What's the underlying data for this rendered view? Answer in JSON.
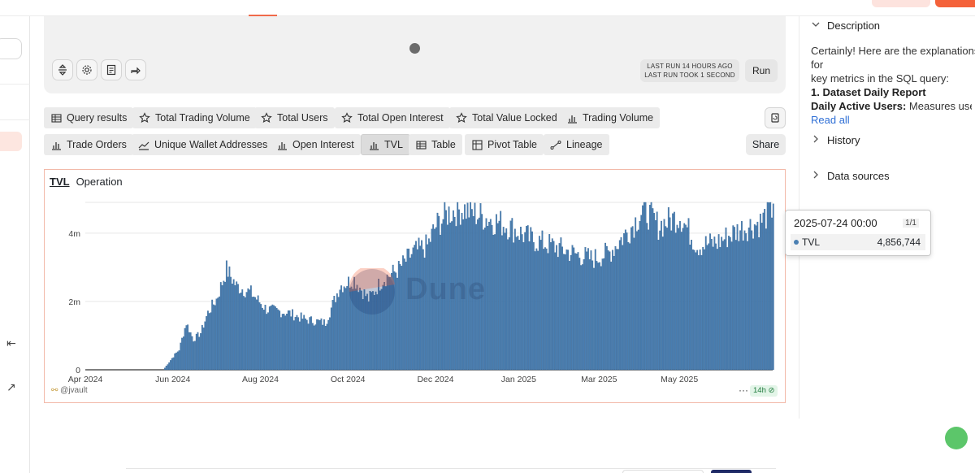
{
  "editor": {
    "last_run_line1": "LAST RUN 14 HOURS AGO",
    "last_run_line2": "LAST RUN TOOK 1 SECOND",
    "run_label": "Run"
  },
  "tabs_row1": [
    {
      "label": "Query results",
      "icon": "table-icon"
    },
    {
      "label": "Total Trading Volume",
      "icon": "star-icon"
    },
    {
      "label": "Total Users",
      "icon": "star-icon"
    },
    {
      "label": "Total Open Interest",
      "icon": "star-icon"
    },
    {
      "label": "Total Value Locked",
      "icon": "star-icon"
    },
    {
      "label": "Trading Volume",
      "icon": "bar-chart-icon"
    }
  ],
  "tabs_row2": [
    {
      "label": "Trade Orders",
      "icon": "bar-chart-icon"
    },
    {
      "label": "Unique Wallet Addresses",
      "icon": "line-chart-icon"
    },
    {
      "label": "Open Interest",
      "icon": "bar-chart-icon"
    },
    {
      "label": "TVL",
      "icon": "bar-chart-icon",
      "active": true
    },
    {
      "label": "Table",
      "icon": "table-icon"
    },
    {
      "label": "Pivot Table",
      "icon": "pivot-icon"
    },
    {
      "label": "Lineage",
      "icon": "lineage-icon"
    }
  ],
  "share_label": "Share",
  "panel": {
    "title": "TVL",
    "subtitle": "Operation",
    "author": "@jvault",
    "refresh_badge": "14h",
    "more": "···",
    "watermark": "Dune"
  },
  "tooltip": {
    "date": "2025-07-24 00:00",
    "page": "1/1",
    "series": "TVL",
    "value": "4,856,744"
  },
  "right_pane": {
    "description_label": "Description",
    "description_text_1": "Certainly! Here are the explanations for",
    "description_text_2": "key metrics in the SQL query:",
    "description_item_1": "1. Dataset Daily Report",
    "description_item_2_bold": "Daily Active Users:",
    "description_item_2_rest": " Measures user…",
    "read_all": "Read all",
    "history_label": "History",
    "data_sources_label": "Data sources"
  },
  "colors": {
    "bar": "#4a7fb2",
    "bar_edge": "#2f5f8f",
    "accent": "#f4623a",
    "panel_border": "#f2b9a9"
  },
  "chart_data": {
    "type": "bar",
    "series": [
      {
        "name": "TVL"
      }
    ],
    "x_start": "2024-04-01",
    "x_end": "2025-07-24",
    "xticks": [
      "Apr 2024",
      "Jun 2024",
      "Aug 2024",
      "Oct 2024",
      "Dec 2024",
      "Jan 2025",
      "Mar 2025",
      "May 2025"
    ],
    "yticks": [
      "0",
      "2m",
      "4m"
    ],
    "ylim": [
      0,
      4900000
    ],
    "points": [
      [
        "2024-04-01",
        0
      ],
      [
        "2024-05-25",
        0
      ],
      [
        "2024-06-01",
        400000
      ],
      [
        "2024-06-05",
        600000
      ],
      [
        "2024-06-10",
        1400000
      ],
      [
        "2024-06-15",
        900000
      ],
      [
        "2024-06-20",
        1100000
      ],
      [
        "2024-06-25",
        1700000
      ],
      [
        "2024-07-01",
        2100000
      ],
      [
        "2024-07-05",
        2600000
      ],
      [
        "2024-07-08",
        3000000
      ],
      [
        "2024-07-15",
        2500000
      ],
      [
        "2024-07-25",
        2300000
      ],
      [
        "2024-08-05",
        1800000
      ],
      [
        "2024-08-20",
        1700000
      ],
      [
        "2024-09-01",
        1500000
      ],
      [
        "2024-09-15",
        1400000
      ],
      [
        "2024-09-25",
        2500000
      ],
      [
        "2024-10-05",
        2700000
      ],
      [
        "2024-10-15",
        2100000
      ],
      [
        "2024-10-25",
        2700000
      ],
      [
        "2024-11-05",
        3000000
      ],
      [
        "2024-11-15",
        3500000
      ],
      [
        "2024-11-25",
        3700000
      ],
      [
        "2024-12-01",
        4300000
      ],
      [
        "2024-12-10",
        4700000
      ],
      [
        "2024-12-20",
        4800000
      ],
      [
        "2025-01-01",
        4600000
      ],
      [
        "2025-01-20",
        4300000
      ],
      [
        "2025-02-05",
        3900000
      ],
      [
        "2025-02-20",
        3700000
      ],
      [
        "2025-03-05",
        3500000
      ],
      [
        "2025-03-20",
        3300000
      ],
      [
        "2025-04-01",
        3500000
      ],
      [
        "2025-04-15",
        4200000
      ],
      [
        "2025-04-25",
        4800000
      ],
      [
        "2025-05-05",
        4300000
      ],
      [
        "2025-05-20",
        4600000
      ],
      [
        "2025-06-01",
        3700000
      ],
      [
        "2025-06-15",
        3800000
      ],
      [
        "2025-07-01",
        4200000
      ],
      [
        "2025-07-15",
        4400000
      ],
      [
        "2025-07-24",
        4856744
      ]
    ]
  }
}
